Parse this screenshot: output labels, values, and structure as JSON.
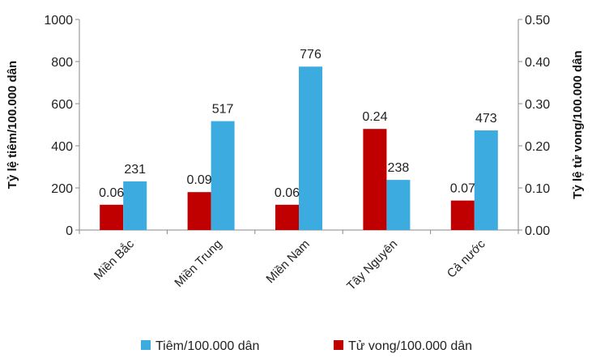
{
  "chart_data": {
    "type": "bar",
    "categories": [
      "Miền Bắc",
      "Miền Trung",
      "Miền Nam",
      "Tây Nguyên",
      "Cả nước"
    ],
    "series": [
      {
        "name": "Tử vong/100.000 dân",
        "axis": "right",
        "color": "#c00000",
        "values": [
          0.06,
          0.09,
          0.06,
          0.24,
          0.07
        ],
        "labels": [
          "0.06",
          "0.09",
          "0.06",
          "0.24",
          "0.07"
        ]
      },
      {
        "name": "Tiêm/100.000 dân",
        "axis": "left",
        "color": "#3cace0",
        "values": [
          231,
          517,
          776,
          238,
          473
        ],
        "labels": [
          "231",
          "517",
          "776",
          "238",
          "473"
        ]
      }
    ],
    "ylabel_left": "Tỷ lệ tiêm/100.000 dân",
    "ylabel_right": "Tỷ lệ tử vong/100.000 dân",
    "ylim_left": [
      0,
      1000
    ],
    "ylim_right": [
      0,
      0.5
    ],
    "yticks_left": [
      "0",
      "200",
      "400",
      "600",
      "800",
      "1000"
    ],
    "yticks_right": [
      "0.00",
      "0.10",
      "0.20",
      "0.30",
      "0.40",
      "0.50"
    ],
    "grid": false,
    "legend_position": "bottom",
    "legend": [
      {
        "label": "Tiêm/100.000 dân",
        "color": "#3cace0"
      },
      {
        "label": "Tử vong/100.000 dân",
        "color": "#c00000"
      }
    ]
  }
}
